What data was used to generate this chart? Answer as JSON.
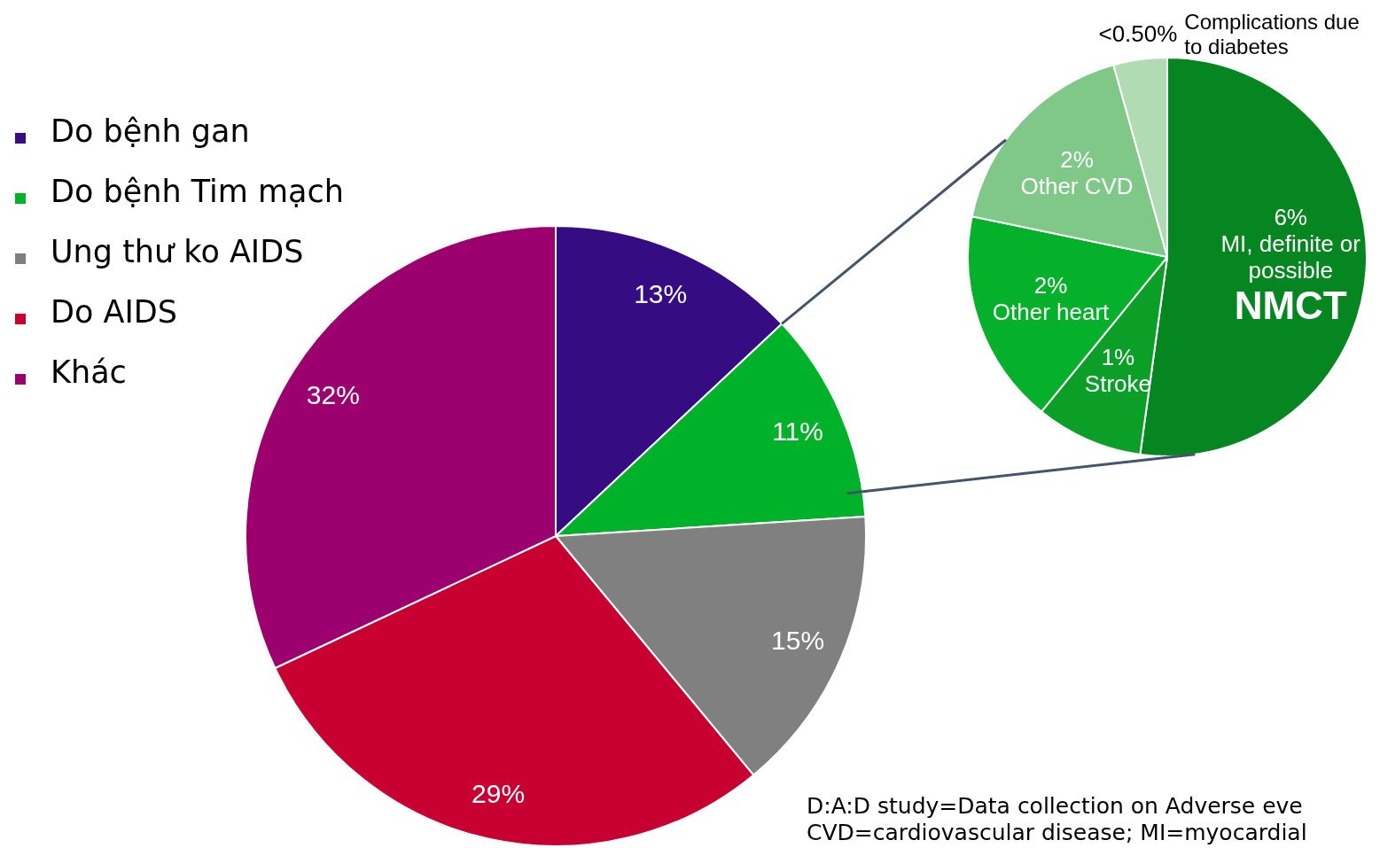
{
  "chart_data": [
    {
      "type": "pie",
      "categories": [
        "Do bệnh gan",
        "Do bệnh Tim mạch",
        "Ung thư ko AIDS",
        "Do AIDS",
        "Khác"
      ],
      "values": [
        13,
        11,
        15,
        29,
        32
      ],
      "colors": [
        "#350c82",
        "#00b22a",
        "#808080",
        "#c80032",
        "#9b006e"
      ],
      "value_labels": [
        "13%",
        "11%",
        "15%",
        "29%",
        "32%"
      ],
      "legend": "top left",
      "annotations": [
        "D:A:D study=Data collection on Adverse eve",
        "CVD=cardiovascular disease; MI=myocardial"
      ]
    },
    {
      "type": "pie",
      "categories": [
        "MI, definite or possible",
        "Stroke",
        "Other heart",
        "Other CVD",
        "Complications due to diabetes"
      ],
      "values": [
        6,
        1,
        2,
        2,
        0.5
      ],
      "colors": [
        "#068620",
        "#0c9f28",
        "#05b02a",
        "#80c887",
        "#b0dbb3"
      ],
      "value_labels": [
        "6%",
        "1%",
        "2%",
        "2%",
        "<0.50%"
      ],
      "annotations": [
        {
          "text": "NMCT",
          "x": "MI, definite or possible"
        }
      ]
    }
  ]
}
